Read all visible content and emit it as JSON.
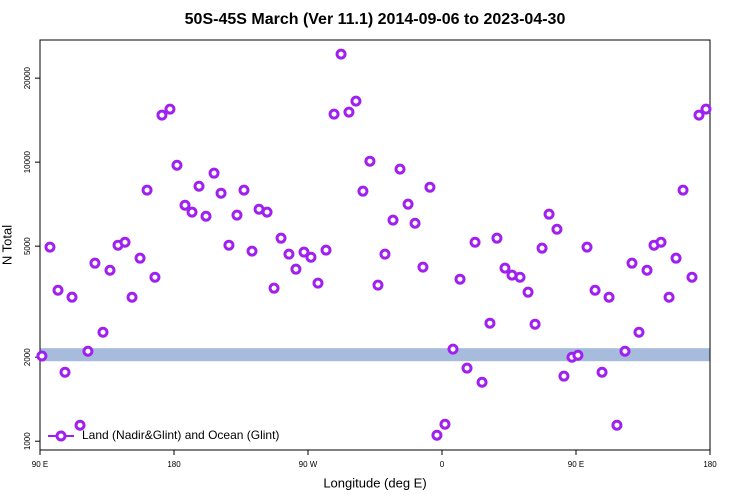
{
  "chart_data": {
    "type": "scatter",
    "title": "50S-45S March (Ver 11.1)   2014-09-06 to 2023-04-30",
    "xlabel": "Longitude (deg E)",
    "ylabel": "N Total",
    "xlim": [
      90,
      540
    ],
    "ylim": [
      930,
      27400
    ],
    "log_y": true,
    "xticks": [
      {
        "value": 90,
        "label": "90 E"
      },
      {
        "value": 180,
        "label": "180"
      },
      {
        "value": 270,
        "label": "90 W"
      },
      {
        "value": 360,
        "label": "0"
      },
      {
        "value": 450,
        "label": "90 E"
      },
      {
        "value": 540,
        "label": "180"
      }
    ],
    "yticks": [
      1000,
      2000,
      5000,
      10000,
      20000
    ],
    "band": {
      "range": [
        1935,
        2155
      ],
      "color": "#a7bcdc"
    },
    "legend": "lower left",
    "series": [
      {
        "name": "Land (Nadir&Glint) and Ocean (Glint)",
        "color": "#a020f0",
        "x": [
          91.3,
          96.7,
          102.1,
          106.8,
          111.5,
          116.9,
          122.2,
          126.9,
          132.3,
          137,
          142.4,
          147.1,
          151.8,
          157.2,
          161.9,
          167.2,
          171.9,
          177.3,
          182,
          187.4,
          192.1,
          196.8,
          201.5,
          206.9,
          211.6,
          216.9,
          222.3,
          227,
          232.4,
          237.1,
          242.5,
          247.2,
          251.9,
          257.2,
          261.9,
          267.3,
          272,
          276.7,
          282.1,
          287.5,
          292.2,
          297.5,
          302.2,
          306.9,
          311.6,
          317,
          321.7,
          327.1,
          331.8,
          337.2,
          341.9,
          347.2,
          351.9,
          356.6,
          362,
          367.4,
          372.1,
          376.8,
          382.2,
          386.9,
          392.2,
          396.9,
          402.3,
          407,
          412.4,
          417.8,
          422.5,
          427.2,
          431.9,
          437.2,
          441.9,
          447.3,
          451.3,
          457.4,
          462.8,
          467.5,
          472.2,
          477.5,
          482.9,
          487.6,
          492.3,
          497.7,
          502.4,
          507.1,
          512.5,
          517.2,
          521.9,
          527.9,
          532.6,
          537.3
        ],
        "values": [
          2020,
          4960,
          3476,
          1767,
          3282,
          1141,
          2101,
          4345,
          2458,
          4100,
          5040,
          5165,
          3280,
          4528,
          7940,
          3870,
          14740,
          15490,
          9750,
          7010,
          6620,
          8200,
          6400,
          9130,
          7740,
          5040,
          6460,
          7940,
          4800,
          6780,
          6620,
          3535,
          5340,
          4680,
          4135,
          4760,
          4565,
          3685,
          4840,
          14860,
          24380,
          15110,
          16550,
          7870,
          10080,
          3625,
          4680,
          6200,
          9440,
          7070,
          6040,
          4205,
          8130,
          1050,
          1150,
          2137,
          3807,
          1827,
          5165,
          1627,
          2648,
          5340,
          4170,
          3936,
          3870,
          3420,
          2626,
          4917,
          6510,
          5750,
          1710,
          2000,
          2033,
          4960,
          3476,
          1767,
          3280,
          1141,
          2101,
          4345,
          2458,
          4100,
          5040,
          5165,
          3280,
          4528,
          7940,
          3870,
          14740,
          15490
        ]
      }
    ]
  }
}
